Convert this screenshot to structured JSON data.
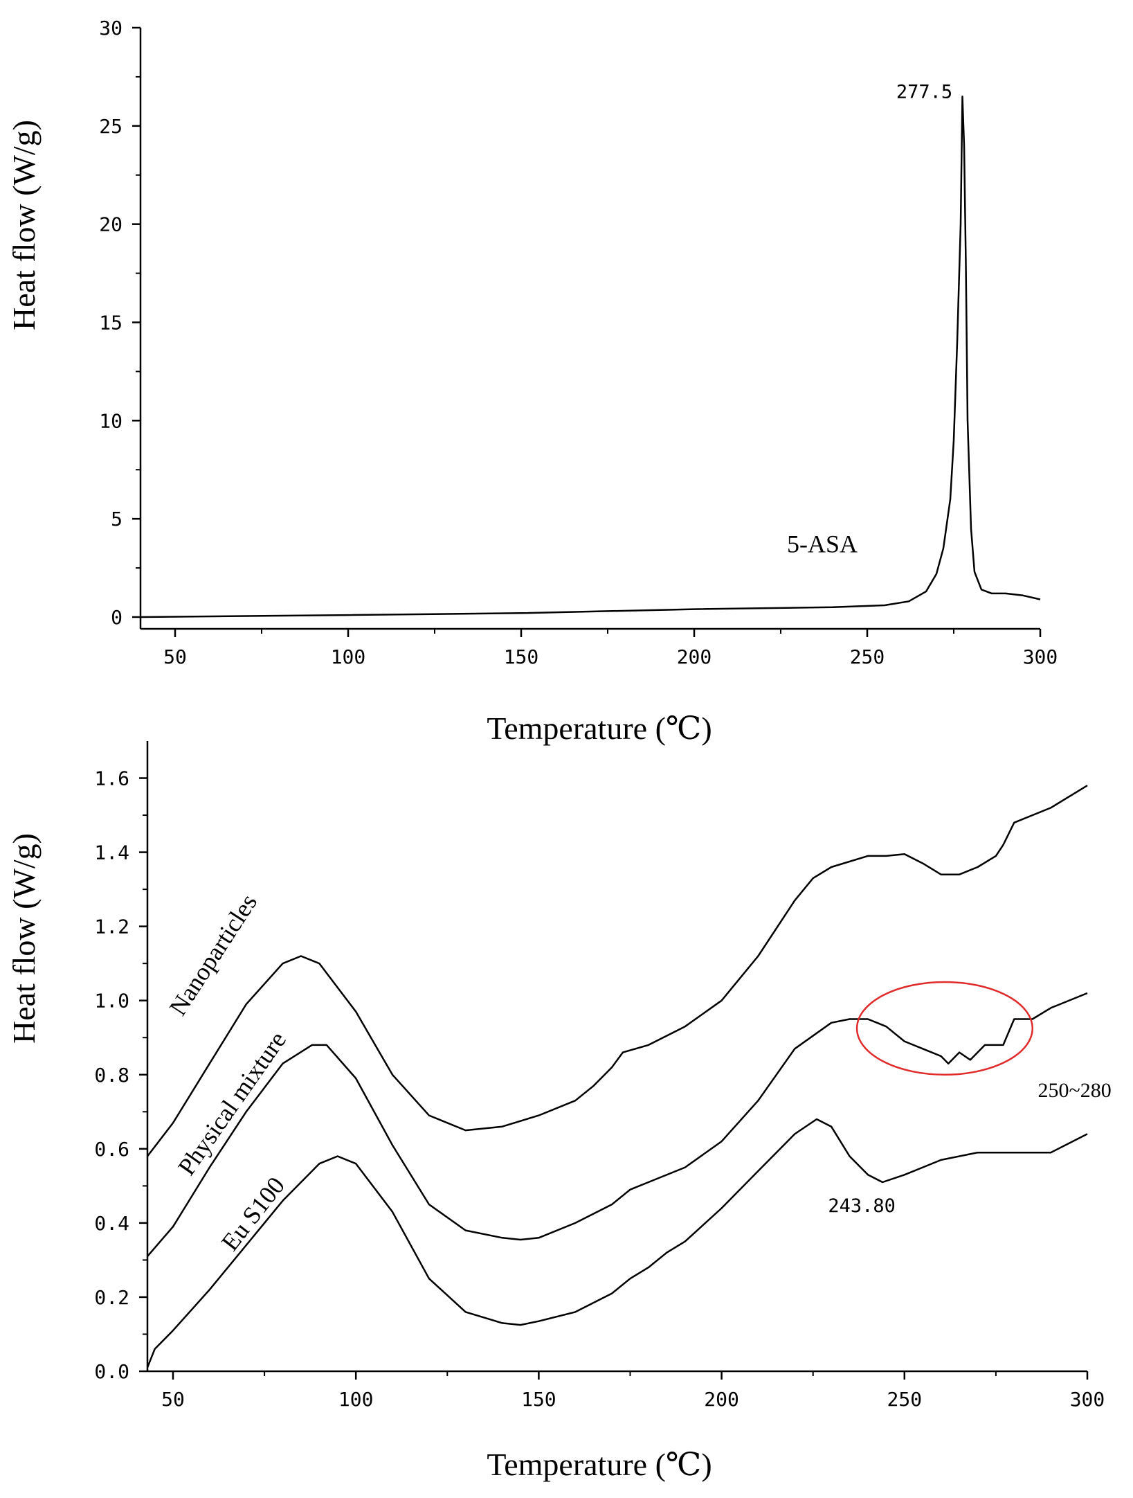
{
  "chart_data": [
    {
      "type": "line",
      "xlabel": "Temperature (℃)",
      "ylabel": "Heat flow (W/g)",
      "xlim": [
        40,
        300
      ],
      "ylim": [
        -0.6,
        30
      ],
      "xticks": [
        50,
        100,
        150,
        200,
        250,
        300
      ],
      "yticks": [
        0,
        5,
        10,
        15,
        20,
        25,
        30
      ],
      "grid": false,
      "series": [
        {
          "name": "5-ASA",
          "x": [
            40,
            100,
            150,
            200,
            240,
            255,
            262,
            267,
            270,
            272,
            274,
            275,
            276,
            277,
            277.5,
            278,
            278.5,
            279,
            280,
            281,
            283,
            286,
            290,
            295,
            300
          ],
          "y": [
            0.0,
            0.1,
            0.2,
            0.4,
            0.5,
            0.6,
            0.8,
            1.3,
            2.2,
            3.5,
            6.0,
            9.0,
            14.0,
            20.0,
            26.5,
            24.0,
            18.0,
            10.0,
            4.5,
            2.3,
            1.4,
            1.2,
            1.2,
            1.1,
            0.9
          ],
          "color": "#000000"
        }
      ],
      "annotations": [
        {
          "text": "277.5",
          "x": 277.5,
          "y": 26.5
        },
        {
          "text": "5-ASA",
          "x": 237,
          "y": 3.3
        }
      ]
    },
    {
      "type": "line",
      "xlabel": "Temperature (℃)",
      "ylabel": "Heat flow (W/g)",
      "xlim": [
        43,
        300
      ],
      "ylim": [
        0,
        1.7
      ],
      "xticks": [
        50,
        100,
        150,
        200,
        250,
        300
      ],
      "yticks": [
        0.0,
        0.2,
        0.4,
        0.6,
        0.8,
        1.0,
        1.2,
        1.4,
        1.6
      ],
      "yticklabels": [
        "0.0",
        "0.2",
        "0.4",
        "0.6",
        "0.8",
        "1.0",
        "1.2",
        "1.4",
        "1.6"
      ],
      "grid": false,
      "series": [
        {
          "name": "Nanoparticles",
          "x": [
            43,
            50,
            60,
            70,
            80,
            85,
            90,
            100,
            110,
            120,
            130,
            140,
            150,
            160,
            165,
            170,
            173,
            180,
            190,
            200,
            210,
            220,
            225,
            230,
            240,
            245,
            250,
            255,
            260,
            265,
            270,
            275,
            277,
            280,
            290,
            300
          ],
          "y": [
            0.58,
            0.67,
            0.83,
            0.99,
            1.1,
            1.12,
            1.1,
            0.97,
            0.8,
            0.69,
            0.65,
            0.66,
            0.69,
            0.73,
            0.77,
            0.82,
            0.86,
            0.88,
            0.93,
            1.0,
            1.12,
            1.27,
            1.33,
            1.36,
            1.39,
            1.39,
            1.395,
            1.37,
            1.34,
            1.34,
            1.36,
            1.39,
            1.42,
            1.48,
            1.52,
            1.58
          ],
          "color": "#000000"
        },
        {
          "name": "Physical mixture",
          "x": [
            43,
            50,
            60,
            70,
            80,
            88,
            92,
            100,
            110,
            120,
            130,
            140,
            145,
            150,
            160,
            170,
            175,
            180,
            190,
            200,
            210,
            220,
            230,
            235,
            240,
            245,
            250,
            255,
            260,
            262,
            265,
            268,
            272,
            277,
            280,
            285,
            290,
            300
          ],
          "y": [
            0.31,
            0.39,
            0.55,
            0.7,
            0.83,
            0.88,
            0.88,
            0.79,
            0.61,
            0.45,
            0.38,
            0.36,
            0.355,
            0.36,
            0.4,
            0.45,
            0.49,
            0.51,
            0.55,
            0.62,
            0.73,
            0.87,
            0.94,
            0.95,
            0.95,
            0.93,
            0.89,
            0.87,
            0.85,
            0.83,
            0.86,
            0.84,
            0.88,
            0.88,
            0.95,
            0.95,
            0.98,
            1.02
          ],
          "color": "#000000"
        },
        {
          "name": "Eu S100",
          "x": [
            43,
            45,
            50,
            60,
            70,
            80,
            90,
            95,
            100,
            110,
            120,
            130,
            140,
            145,
            150,
            160,
            170,
            175,
            180,
            185,
            190,
            200,
            210,
            220,
            226,
            230,
            235,
            240,
            244,
            250,
            255,
            260,
            270,
            280,
            290,
            300
          ],
          "y": [
            0.01,
            0.06,
            0.11,
            0.22,
            0.34,
            0.46,
            0.56,
            0.58,
            0.56,
            0.43,
            0.25,
            0.16,
            0.13,
            0.125,
            0.135,
            0.16,
            0.21,
            0.25,
            0.28,
            0.32,
            0.35,
            0.44,
            0.54,
            0.64,
            0.68,
            0.66,
            0.58,
            0.53,
            0.51,
            0.53,
            0.55,
            0.57,
            0.59,
            0.59,
            0.59,
            0.64
          ],
          "color": "#000000"
        }
      ],
      "annotations": [
        {
          "text": "243.80",
          "x": 244,
          "y": 0.43
        },
        {
          "text": "250~280",
          "x": 288,
          "y": 0.74
        }
      ],
      "highlight": {
        "shape": "ellipse",
        "x_range": [
          237,
          285
        ],
        "y_range": [
          0.8,
          1.05
        ],
        "color": "#e02b2b"
      }
    }
  ]
}
